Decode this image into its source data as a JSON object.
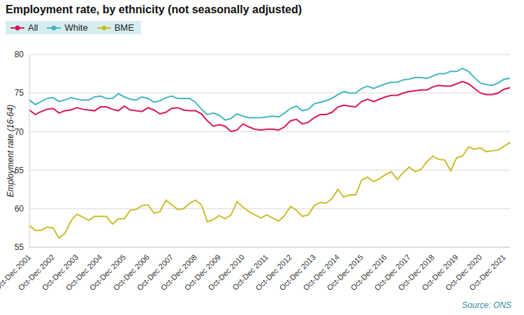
{
  "chart_data": {
    "type": "line",
    "title": "Employment rate, by ethnicity (not seasonally adjusted)",
    "y_label": "Employment rate (16-64)",
    "source": "Source: ONS",
    "categories": [
      "Oct-Dec 2001",
      null,
      null,
      null,
      "Oct-Dec 2002",
      null,
      null,
      null,
      "Oct-Dec 2003",
      null,
      null,
      null,
      "Oct-Dec 2004",
      null,
      null,
      null,
      "Oct-Dec 2005",
      null,
      null,
      null,
      "Oct-Dec 2006",
      null,
      null,
      null,
      "Oct-Dec 2007",
      null,
      null,
      null,
      "Oct-Dec 2008",
      null,
      null,
      null,
      "Oct-Dec 2009",
      null,
      null,
      null,
      "Oct-Dec 2010",
      null,
      null,
      null,
      "Oct-Dec 2011",
      null,
      null,
      null,
      "Oct-Dec 2012",
      null,
      null,
      null,
      "Oct-Dec 2013",
      null,
      null,
      null,
      "Oct-Dec 2014",
      null,
      null,
      null,
      "Oct-Dec 2015",
      null,
      null,
      null,
      "Oct-Dec 2016",
      null,
      null,
      null,
      "Oct-Dec 2017",
      null,
      null,
      null,
      "Oct-Dec 2018",
      null,
      null,
      null,
      "Oct-Dec 2019",
      null,
      null,
      null,
      "Oct-Dec 2020",
      null,
      null,
      null,
      "Oct-Dec 2021",
      null
    ],
    "series": [
      {
        "name": "All",
        "color": "#d6185b",
        "values": [
          72.8,
          72.2,
          72.6,
          72.9,
          73.0,
          72.4,
          72.7,
          72.8,
          73.1,
          72.9,
          72.8,
          72.7,
          73.2,
          73.2,
          72.9,
          72.7,
          73.3,
          72.8,
          72.7,
          72.6,
          73.1,
          72.8,
          72.3,
          72.5,
          73.0,
          73.1,
          72.8,
          72.7,
          72.7,
          72.3,
          71.4,
          70.7,
          70.9,
          70.7,
          70.0,
          70.2,
          71.0,
          70.6,
          70.3,
          70.2,
          70.3,
          70.3,
          70.2,
          70.6,
          71.4,
          71.6,
          71.0,
          71.2,
          71.8,
          72.2,
          72.2,
          72.5,
          73.2,
          73.4,
          73.3,
          73.2,
          73.9,
          74.2,
          73.9,
          74.2,
          74.5,
          74.7,
          74.7,
          75.0,
          75.2,
          75.3,
          75.4,
          75.4,
          75.8,
          76.0,
          75.9,
          75.9,
          76.2,
          76.5,
          76.2,
          75.6,
          75.0,
          74.8,
          74.8,
          75.0,
          75.5,
          75.7
        ]
      },
      {
        "name": "White",
        "color": "#46b5c3",
        "values": [
          74.1,
          73.5,
          73.9,
          74.3,
          74.4,
          73.9,
          74.1,
          74.4,
          74.2,
          74.1,
          74.1,
          74.5,
          74.6,
          74.3,
          74.3,
          74.9,
          74.5,
          74.2,
          74.1,
          74.5,
          74.3,
          73.8,
          74.0,
          74.4,
          74.6,
          74.3,
          74.3,
          74.3,
          73.8,
          72.9,
          72.2,
          72.4,
          72.1,
          71.5,
          71.7,
          72.3,
          72.0,
          71.8,
          71.8,
          71.8,
          71.9,
          72.0,
          71.9,
          72.4,
          73.0,
          73.3,
          72.7,
          72.9,
          73.6,
          73.8,
          74.0,
          74.3,
          74.8,
          75.2,
          75.0,
          75.0,
          75.6,
          75.9,
          75.6,
          75.9,
          76.2,
          76.4,
          76.4,
          76.7,
          76.8,
          77.0,
          77.0,
          76.9,
          77.2,
          77.5,
          77.5,
          77.8,
          77.8,
          78.2,
          77.8,
          77.0,
          76.3,
          76.1,
          76.0,
          76.3,
          76.8,
          76.9
        ]
      },
      {
        "name": "BME",
        "color": "#c9be2f",
        "values": [
          57.8,
          57.2,
          57.2,
          57.6,
          57.5,
          56.2,
          56.8,
          58.4,
          59.3,
          58.9,
          58.5,
          59.0,
          59.0,
          59.0,
          58.0,
          58.7,
          58.7,
          59.8,
          59.9,
          60.4,
          60.5,
          59.4,
          59.6,
          61.1,
          60.5,
          59.9,
          60.0,
          60.7,
          61.1,
          60.5,
          58.3,
          58.6,
          59.1,
          58.7,
          59.2,
          60.9,
          60.2,
          59.6,
          59.2,
          58.8,
          59.2,
          58.8,
          58.4,
          59.1,
          60.3,
          59.8,
          59.0,
          59.2,
          60.4,
          60.8,
          60.7,
          61.3,
          62.5,
          61.5,
          61.8,
          61.8,
          63.7,
          64.1,
          63.5,
          63.9,
          64.4,
          64.8,
          63.8,
          64.7,
          65.4,
          64.8,
          65.1,
          66.1,
          66.8,
          66.4,
          66.3,
          64.9,
          66.6,
          66.8,
          68.0,
          67.7,
          67.9,
          67.4,
          67.5,
          67.6,
          68.1,
          68.6
        ]
      }
    ],
    "ylim": [
      55,
      80
    ],
    "yticks": [
      55,
      60,
      65,
      70,
      75,
      80
    ],
    "grid": true,
    "legend": "top-left"
  }
}
